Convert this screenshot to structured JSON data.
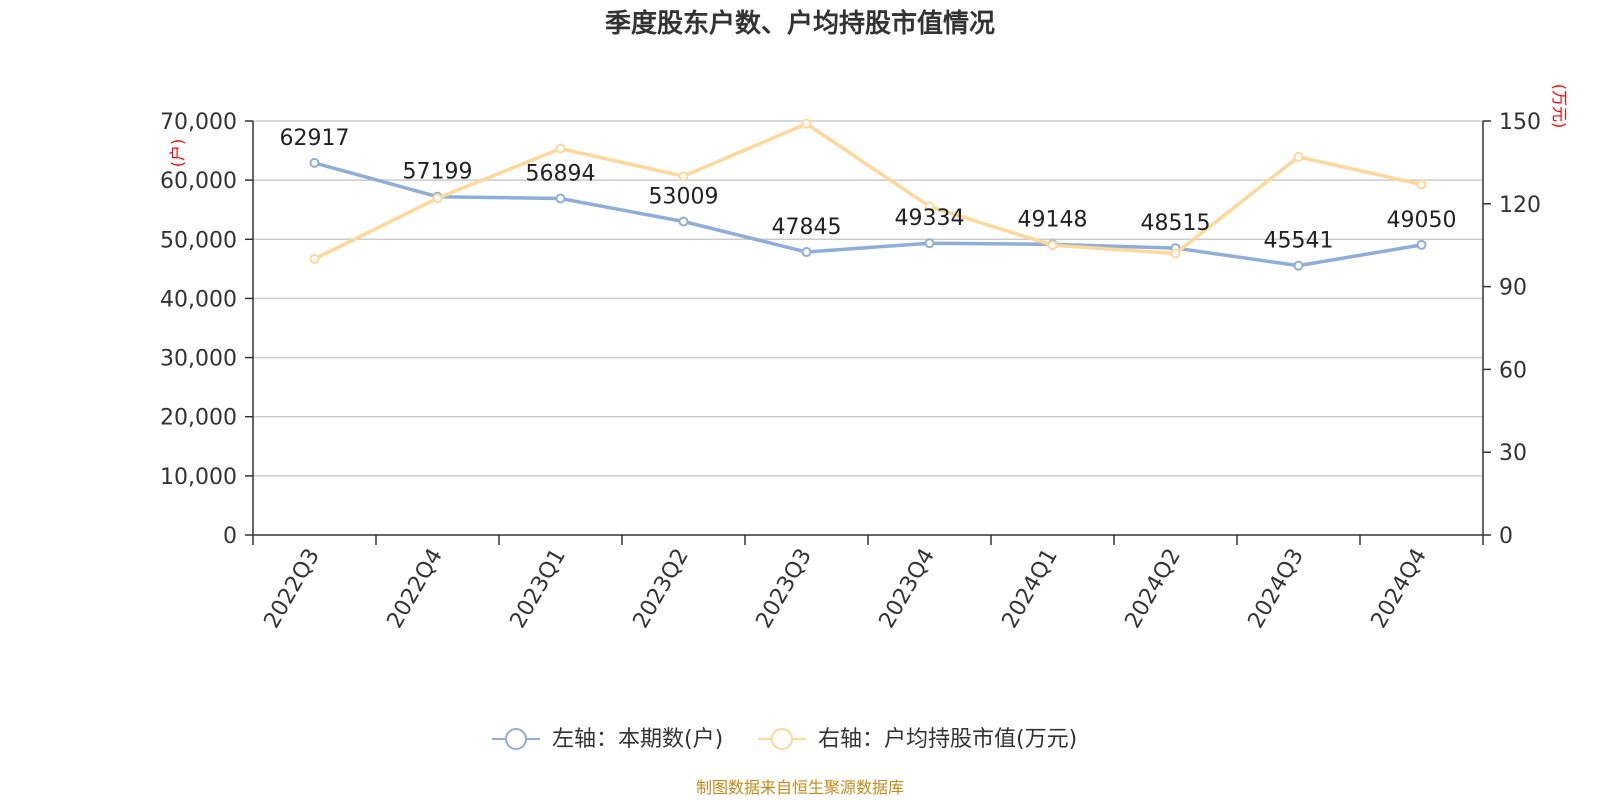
{
  "chart_data": {
    "type": "line",
    "title": "季度股东户数、户均持股市值情况",
    "categories": [
      "2022Q3",
      "2022Q4",
      "2023Q1",
      "2023Q2",
      "2023Q3",
      "2023Q4",
      "2024Q1",
      "2024Q2",
      "2024Q3",
      "2024Q4"
    ],
    "left_axis": {
      "unit": "(户)",
      "ylim": [
        0,
        70000
      ],
      "ticks": [
        0,
        10000,
        20000,
        30000,
        40000,
        50000,
        60000,
        70000
      ],
      "tick_labels": [
        "0",
        "10,000",
        "20,000",
        "30,000",
        "40,000",
        "50,000",
        "60,000",
        "70,000"
      ]
    },
    "right_axis": {
      "unit": "(万元)",
      "ylim": [
        0,
        150
      ],
      "ticks": [
        0,
        30,
        60,
        90,
        120,
        150
      ],
      "tick_labels": [
        "0",
        "30",
        "60",
        "90",
        "120",
        "150"
      ]
    },
    "series": [
      {
        "name": "左轴：本期数(户)",
        "axis": "left",
        "color": "#8eaed9",
        "values": [
          62917,
          57199,
          56894,
          53009,
          47845,
          49334,
          49148,
          48515,
          45541,
          49050
        ],
        "labels": [
          "62917",
          "57199",
          "56894",
          "53009",
          "47845",
          "49334",
          "49148",
          "48515",
          "45541",
          "49050"
        ]
      },
      {
        "name": "右轴：户均持股市值(万元)",
        "axis": "right",
        "color": "#fcd89b",
        "values": [
          100,
          122,
          140,
          130,
          149,
          119,
          105,
          102,
          137,
          127
        ]
      }
    ],
    "grid": true,
    "legend_position": "bottom-center",
    "source": "制图数据来自恒生聚源数据库"
  }
}
